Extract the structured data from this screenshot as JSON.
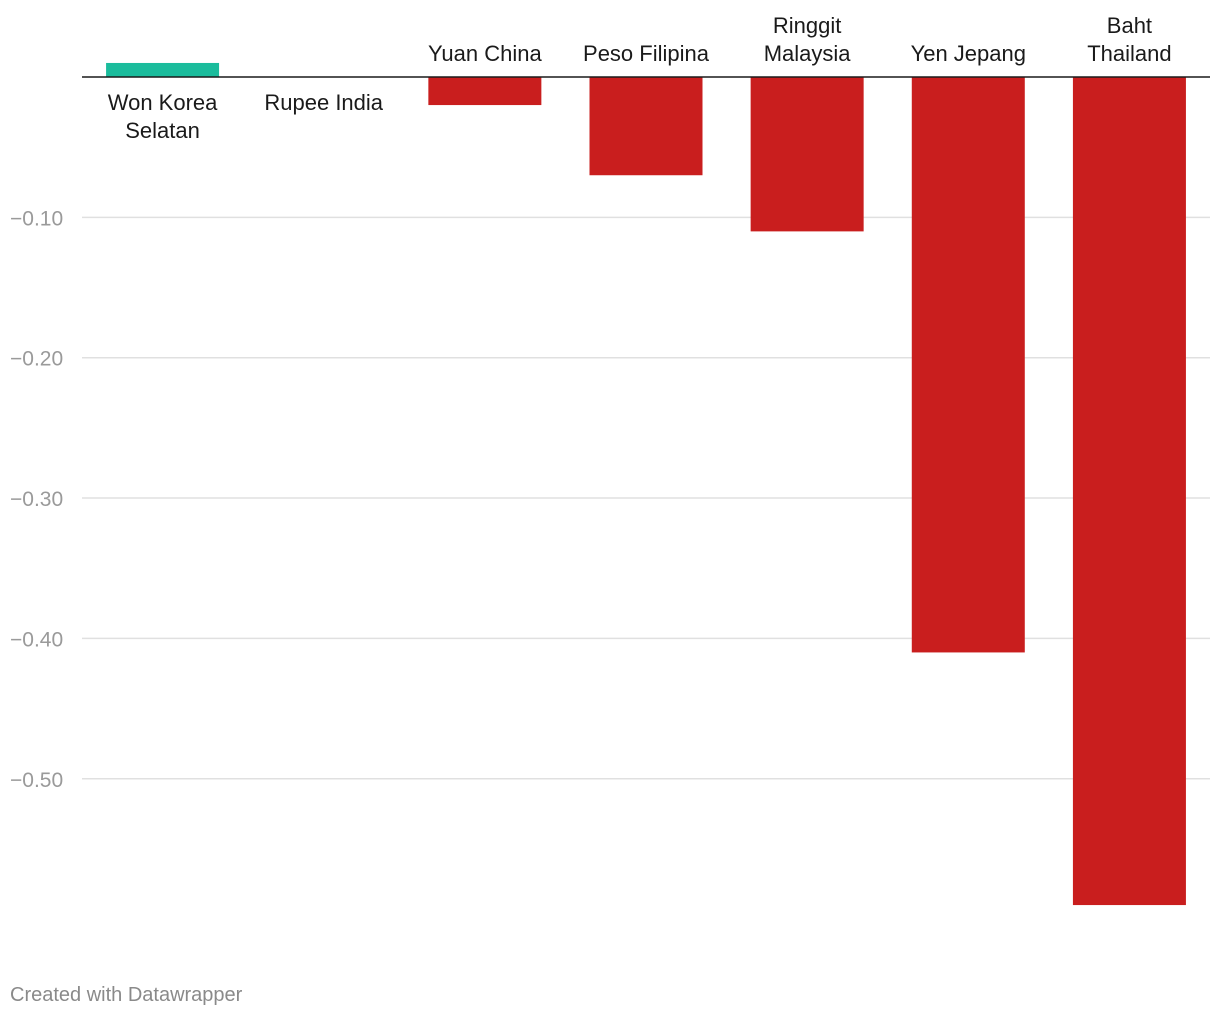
{
  "footer": {
    "credit": "Created with Datawrapper"
  },
  "colors": {
    "positive": "#1abc9c",
    "negative": "#c91e1e",
    "grid": "#e0e0e0",
    "tick_text": "#9a9a9a",
    "label_text": "#1a1a1a"
  },
  "chart_data": {
    "type": "bar",
    "categories": [
      [
        "Won Korea",
        "Selatan"
      ],
      [
        "Rupee India"
      ],
      [
        "Yuan China"
      ],
      [
        "Peso Filipina"
      ],
      [
        "Ringgit",
        "Malaysia"
      ],
      [
        "Yen Jepang"
      ],
      [
        "Baht",
        "Thailand"
      ]
    ],
    "values": [
      0.01,
      0.0,
      -0.02,
      -0.07,
      -0.11,
      -0.41,
      -0.59
    ],
    "ylim": [
      -0.6,
      0.0
    ],
    "yticks": [
      -0.1,
      -0.2,
      -0.3,
      -0.4,
      -0.5
    ],
    "ytick_labels": [
      "−0.10",
      "−0.20",
      "−0.30",
      "−0.40",
      "−0.50"
    ],
    "grid": true,
    "legend": "none"
  }
}
